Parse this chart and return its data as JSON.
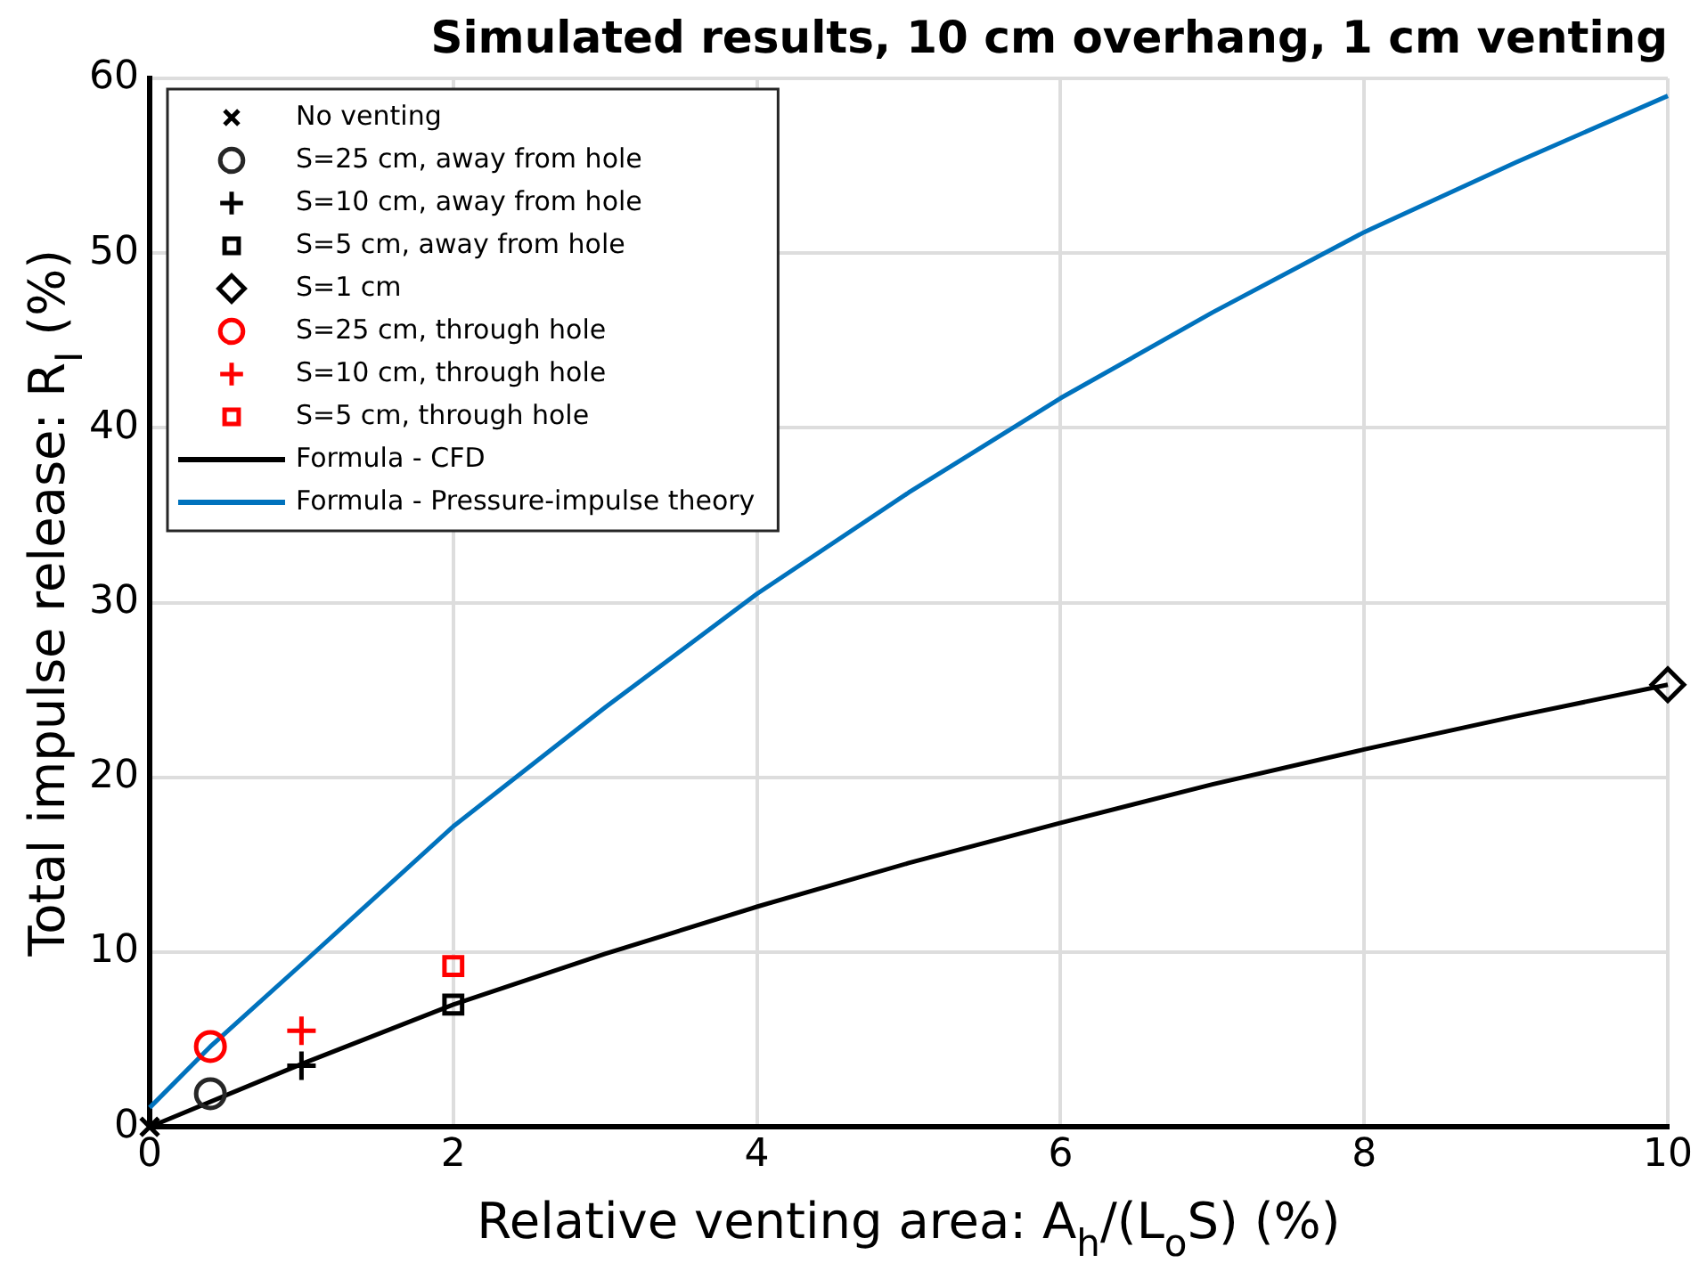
{
  "chart_data": {
    "type": "scatter",
    "title": "Simulated results, 10 cm overhang, 1 cm venting",
    "xlabel": "Relative venting area: A$_{h}$/(L$_{o}$S) (%)",
    "ylabel": "Total impulse release: R$_{I}$ (%)",
    "xlim": [
      0,
      10
    ],
    "xticks": [
      0,
      2,
      4,
      6,
      8,
      10
    ],
    "ylim": [
      0,
      60
    ],
    "yticks": [
      0,
      10,
      20,
      30,
      40,
      50,
      60
    ],
    "grid": true,
    "legend": "top left",
    "series": [
      {
        "name": "No venting",
        "type": "scatter",
        "marker": "x",
        "color": "#000000",
        "x": [
          0
        ],
        "values": [
          0
        ]
      },
      {
        "name": "S=25 cm, away from hole",
        "type": "scatter",
        "marker": "circle",
        "color": "#262626",
        "x": [
          0.4
        ],
        "values": [
          1.9
        ]
      },
      {
        "name": "S=10 cm, away from hole",
        "type": "scatter",
        "marker": "cross",
        "color": "#000000",
        "x": [
          1
        ],
        "values": [
          3.5
        ]
      },
      {
        "name": "S=5 cm, away from hole",
        "type": "scatter",
        "marker": "square",
        "color": "#000000",
        "x": [
          2
        ],
        "values": [
          7.0
        ]
      },
      {
        "name": "S=1 cm",
        "type": "scatter",
        "marker": "diamond",
        "color": "#000000",
        "x": [
          10
        ],
        "values": [
          25.3
        ]
      },
      {
        "name": "S=25 cm, through hole",
        "type": "scatter",
        "marker": "circle",
        "color": "#ff0000",
        "x": [
          0.4
        ],
        "values": [
          4.6
        ]
      },
      {
        "name": "S=10 cm, through hole",
        "type": "scatter",
        "marker": "cross",
        "color": "#ff0000",
        "x": [
          1
        ],
        "values": [
          5.5
        ]
      },
      {
        "name": "S=5 cm, through hole",
        "type": "scatter",
        "marker": "square",
        "color": "#ff0000",
        "x": [
          2
        ],
        "values": [
          9.2
        ]
      },
      {
        "name": "Formula - CFD",
        "type": "line",
        "marker": "none",
        "color": "#000000",
        "x": [
          0,
          1,
          2,
          3,
          4,
          5,
          6,
          7,
          8,
          9,
          10
        ],
        "values": [
          0,
          3.6,
          7.0,
          9.9,
          12.6,
          15.1,
          17.4,
          19.6,
          21.6,
          23.5,
          25.3
        ]
      },
      {
        "name": "Formula - Pressure-impulse theory",
        "type": "line",
        "marker": "none",
        "color": "#0072bd",
        "x": [
          0,
          0.4,
          1,
          2,
          3,
          4,
          5,
          6,
          7,
          8,
          9,
          10
        ],
        "values": [
          1.1,
          4.6,
          9.3,
          17.2,
          24.0,
          30.5,
          36.3,
          41.7,
          46.6,
          51.2,
          55.2,
          59.0
        ]
      }
    ]
  }
}
